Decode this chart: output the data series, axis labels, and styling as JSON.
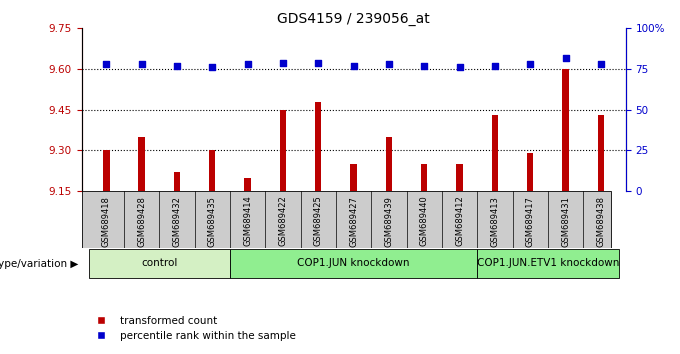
{
  "title": "GDS4159 / 239056_at",
  "samples": [
    "GSM689418",
    "GSM689428",
    "GSM689432",
    "GSM689435",
    "GSM689414",
    "GSM689422",
    "GSM689425",
    "GSM689427",
    "GSM689439",
    "GSM689440",
    "GSM689412",
    "GSM689413",
    "GSM689417",
    "GSM689431",
    "GSM689438"
  ],
  "red_values": [
    9.3,
    9.35,
    9.22,
    9.3,
    9.2,
    9.45,
    9.48,
    9.25,
    9.35,
    9.25,
    9.25,
    9.43,
    9.29,
    9.6,
    9.43
  ],
  "blue_values": [
    78,
    78,
    77,
    76,
    78,
    79,
    79,
    77,
    78,
    77,
    76,
    77,
    78,
    82,
    78
  ],
  "groups": [
    {
      "label": "control",
      "start": 0,
      "end": 4,
      "color": "#d4f0c4"
    },
    {
      "label": "COP1.JUN knockdown",
      "start": 4,
      "end": 11,
      "color": "#90ee90"
    },
    {
      "label": "COP1.JUN.ETV1 knockdown",
      "start": 11,
      "end": 15,
      "color": "#90ee90"
    }
  ],
  "ylim_left": [
    9.15,
    9.75
  ],
  "ylim_right": [
    0,
    100
  ],
  "yticks_left": [
    9.15,
    9.3,
    9.45,
    9.6,
    9.75
  ],
  "yticks_right": [
    0,
    25,
    50,
    75,
    100
  ],
  "ytick_labels_right": [
    "0",
    "25",
    "50",
    "75",
    "100%"
  ],
  "hlines": [
    9.3,
    9.45,
    9.6
  ],
  "red_color": "#bb0000",
  "blue_color": "#0000cc",
  "bar_width": 0.18,
  "genotype_label": "genotype/variation",
  "legend_red": "transformed count",
  "legend_blue": "percentile rank within the sample",
  "title_fontsize": 10,
  "tick_fontsize": 7.5,
  "xtick_fontsize": 6.0,
  "label_fontsize": 7.5
}
